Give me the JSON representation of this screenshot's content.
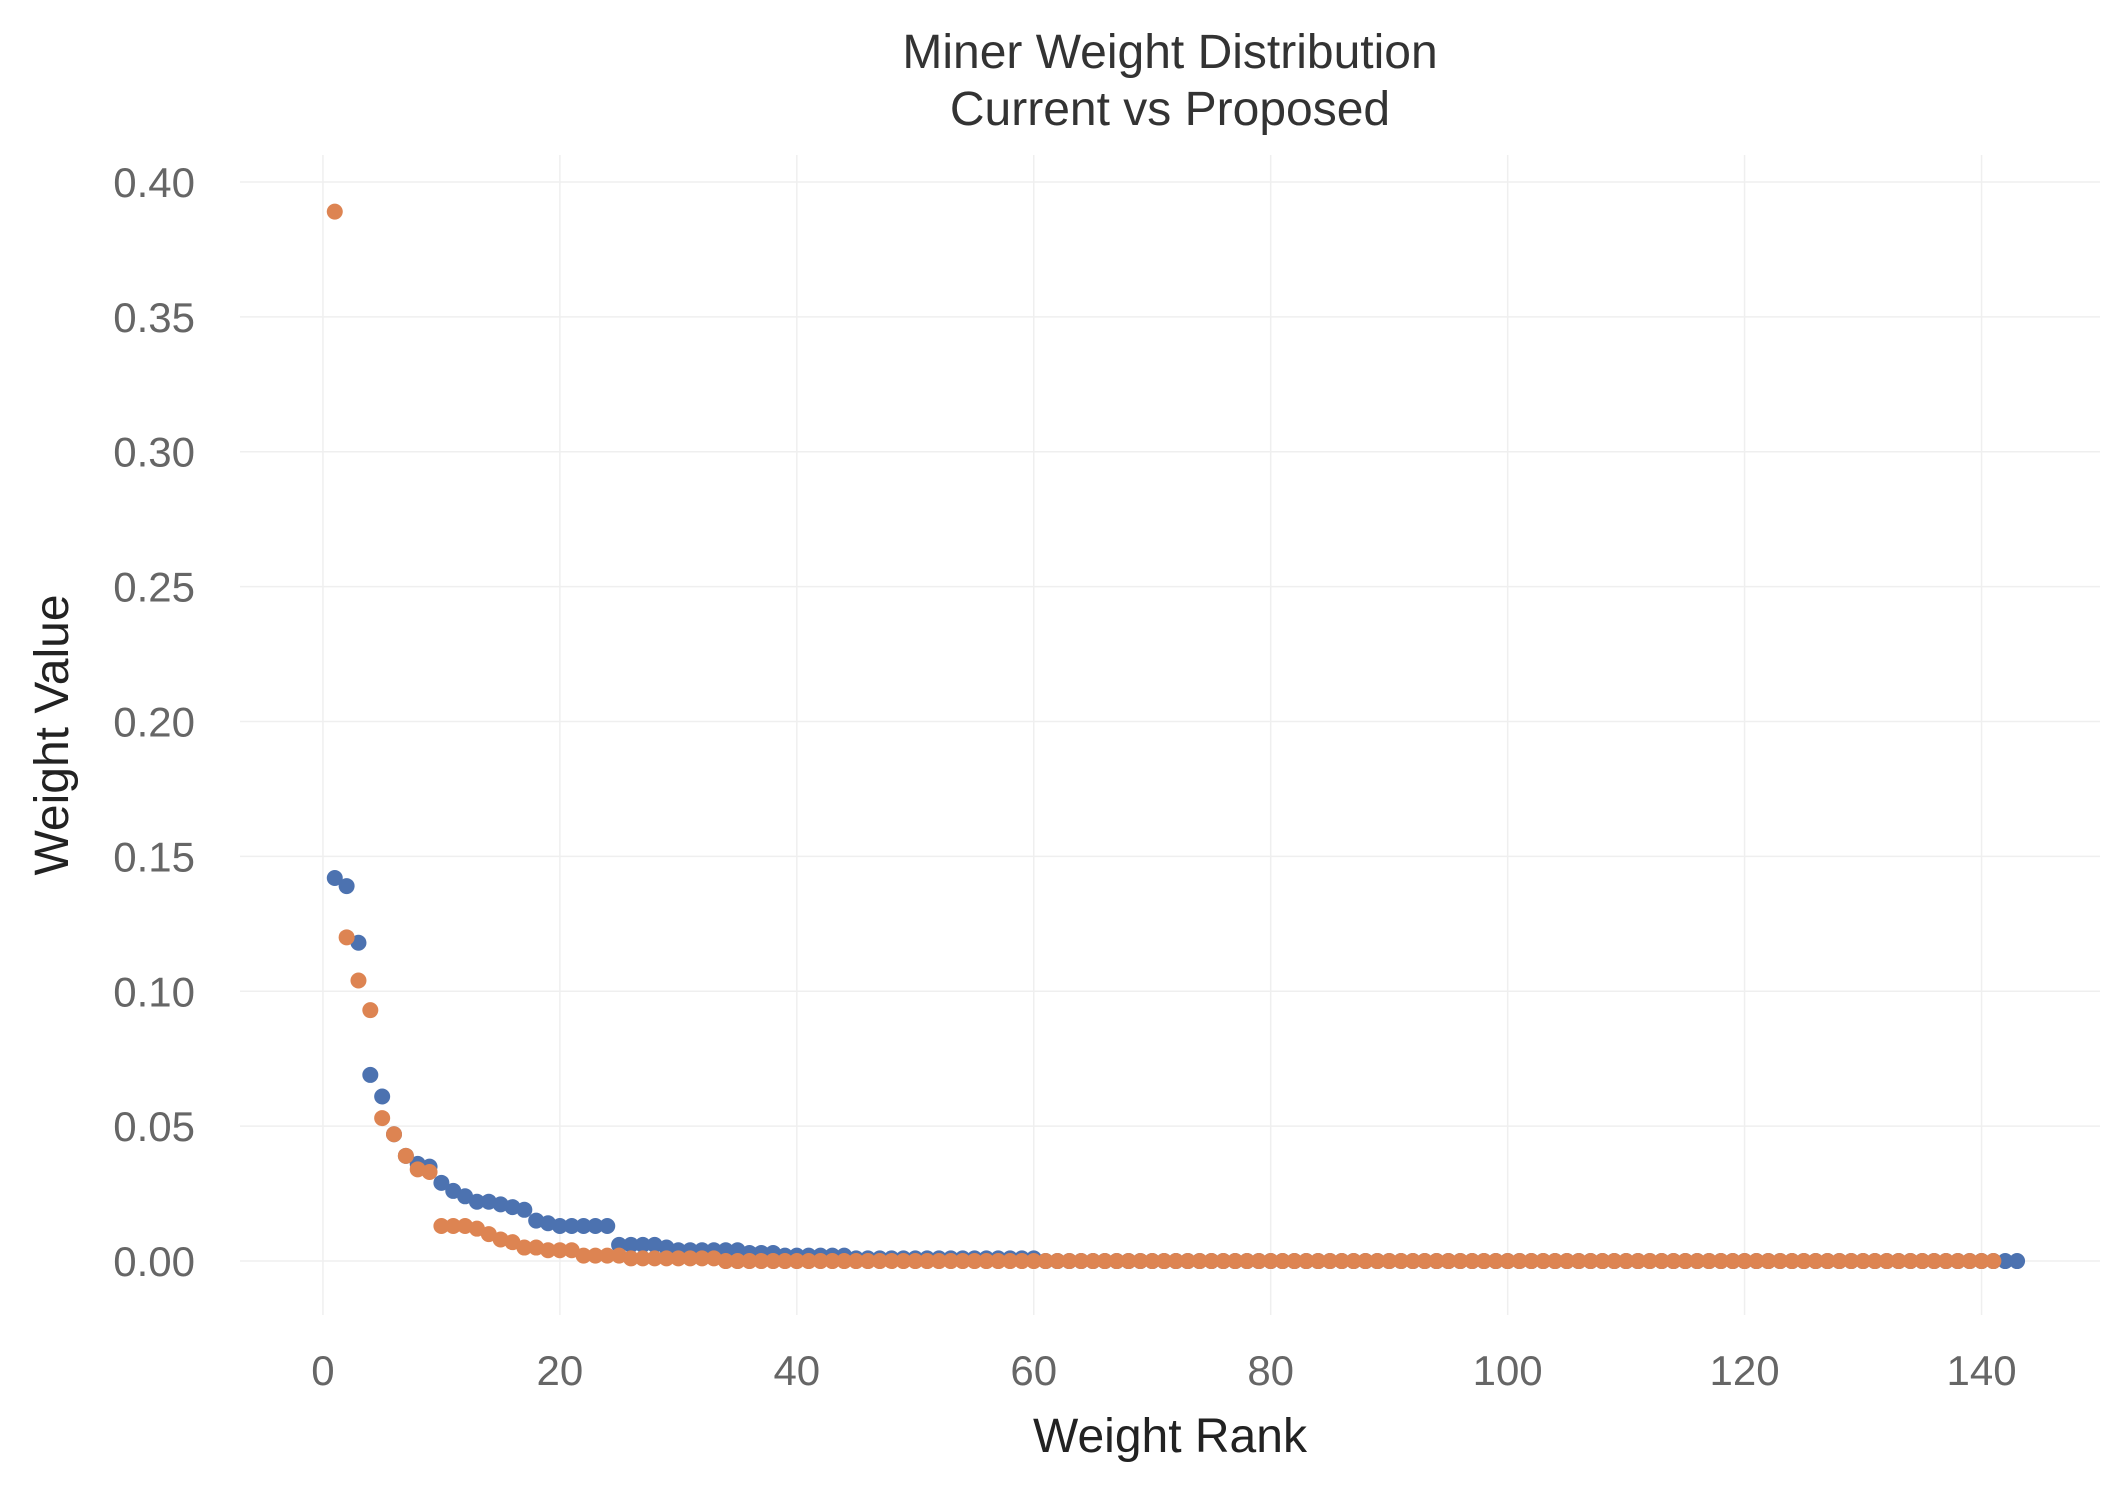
{
  "chart_data": {
    "type": "scatter",
    "title": "Miner Weight Distribution",
    "subtitle": "Current vs Proposed",
    "xlabel": "Weight Rank",
    "ylabel": "Weight Value",
    "xlim": [
      -7,
      150
    ],
    "ylim": [
      -0.02,
      0.41
    ],
    "xticks": [
      0,
      20,
      40,
      60,
      80,
      100,
      120,
      140
    ],
    "xtick_labels": [
      "0",
      "20",
      "40",
      "60",
      "80",
      "100",
      "120",
      "140"
    ],
    "yticks": [
      0,
      0.05,
      0.1,
      0.15,
      0.2,
      0.25,
      0.3,
      0.35,
      0.4
    ],
    "ytick_labels": [
      "0.00",
      "0.05",
      "0.10",
      "0.15",
      "0.20",
      "0.25",
      "0.30",
      "0.35",
      "0.40"
    ],
    "grid": true,
    "legend": false,
    "series": [
      {
        "color": "#4c72b0",
        "x_start": 1,
        "values": [
          0.142,
          0.139,
          0.118,
          0.069,
          0.061,
          0.047,
          0.039,
          0.036,
          0.035,
          0.029,
          0.026,
          0.024,
          0.022,
          0.022,
          0.021,
          0.02,
          0.019,
          0.015,
          0.014,
          0.013,
          0.013,
          0.013,
          0.013,
          0.013,
          0.006,
          0.006,
          0.006,
          0.006,
          0.005,
          0.004,
          0.004,
          0.004,
          0.004,
          0.004,
          0.004,
          0.003,
          0.003,
          0.003,
          0.002,
          0.002,
          0.002,
          0.002,
          0.002,
          0.002,
          0.001,
          0.001,
          0.001,
          0.001,
          0.001,
          0.001,
          0.001,
          0.001,
          0.001,
          0.001,
          0.001,
          0.001,
          0.001,
          0.001,
          0.001,
          0.001,
          0,
          0,
          0,
          0,
          0,
          0,
          0,
          0,
          0,
          0,
          0,
          0,
          0,
          0,
          0,
          0,
          0,
          0,
          0,
          0,
          0,
          0,
          0,
          0,
          0,
          0,
          0,
          0,
          0,
          0,
          0,
          0,
          0,
          0,
          0,
          0,
          0,
          0,
          0,
          0,
          0,
          0,
          0,
          0,
          0,
          0,
          0,
          0,
          0,
          0,
          0,
          0,
          0,
          0,
          0,
          0,
          0,
          0,
          0,
          0,
          0,
          0,
          0,
          0,
          0,
          0,
          0,
          0,
          0,
          0,
          0,
          0,
          0,
          0,
          0,
          0,
          0,
          0,
          0,
          0,
          0,
          0,
          0
        ]
      },
      {
        "color": "#dd8452",
        "x_start": 1,
        "values": [
          0.389,
          0.12,
          0.104,
          0.093,
          0.053,
          0.047,
          0.039,
          0.034,
          0.033,
          0.013,
          0.013,
          0.013,
          0.012,
          0.01,
          0.008,
          0.007,
          0.005,
          0.005,
          0.004,
          0.004,
          0.004,
          0.002,
          0.002,
          0.002,
          0.002,
          0.001,
          0.001,
          0.001,
          0.001,
          0.001,
          0.001,
          0.001,
          0.001,
          0,
          0,
          0,
          0,
          0,
          0,
          0,
          0,
          0,
          0,
          0,
          0,
          0,
          0,
          0,
          0,
          0,
          0,
          0,
          0,
          0,
          0,
          0,
          0,
          0,
          0,
          0,
          0,
          0,
          0,
          0,
          0,
          0,
          0,
          0,
          0,
          0,
          0,
          0,
          0,
          0,
          0,
          0,
          0,
          0,
          0,
          0,
          0,
          0,
          0,
          0,
          0,
          0,
          0,
          0,
          0,
          0,
          0,
          0,
          0,
          0,
          0,
          0,
          0,
          0,
          0,
          0,
          0,
          0,
          0,
          0,
          0,
          0,
          0,
          0,
          0,
          0,
          0,
          0,
          0,
          0,
          0,
          0,
          0,
          0,
          0,
          0,
          0,
          0,
          0,
          0,
          0,
          0,
          0,
          0,
          0,
          0,
          0,
          0,
          0,
          0,
          0,
          0,
          0,
          0,
          0,
          0,
          0
        ]
      }
    ]
  }
}
